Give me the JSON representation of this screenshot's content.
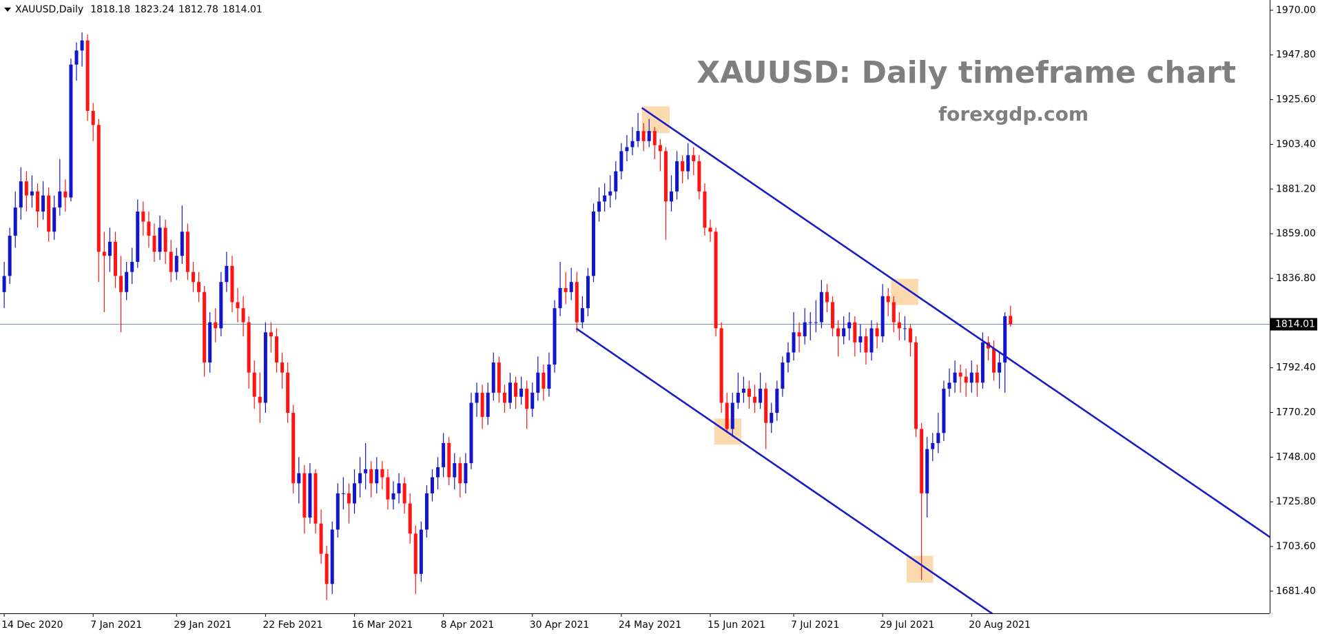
{
  "chart_data": {
    "type": "candlestick",
    "symbol": "XAUUSD,Daily",
    "title": "XAUUSD: Daily timeframe chart",
    "subtitle": "forexgdp.com",
    "up_color": "#1414c8",
    "down_color": "#ff1414",
    "trendline_color": "#1a1acd",
    "highlight_color": "#f9d3a0",
    "price_line_color": "#7a8fb8",
    "grid": false,
    "ylim": [
      1670.4,
      1975.1
    ],
    "yticks": [
      {
        "value": 1970.0,
        "label": "1970.00"
      },
      {
        "value": 1947.8,
        "label": "1947.80"
      },
      {
        "value": 1925.6,
        "label": "1925.60"
      },
      {
        "value": 1903.4,
        "label": "1903.40"
      },
      {
        "value": 1881.2,
        "label": "1881.20"
      },
      {
        "value": 1859.0,
        "label": "1859.00"
      },
      {
        "value": 1836.8,
        "label": "1836.80"
      },
      {
        "value": 1792.4,
        "label": "1792.40"
      },
      {
        "value": 1770.2,
        "label": "1770.20"
      },
      {
        "value": 1748.0,
        "label": "1748.00"
      },
      {
        "value": 1725.8,
        "label": "1725.80"
      },
      {
        "value": 1703.6,
        "label": "1703.60"
      },
      {
        "value": 1681.4,
        "label": "1681.40"
      }
    ],
    "categories": [
      "14 Dec 2020",
      null,
      null,
      null,
      null,
      null,
      null,
      null,
      null,
      null,
      null,
      null,
      null,
      null,
      null,
      null,
      "7 Jan 2021",
      null,
      null,
      null,
      null,
      null,
      null,
      null,
      null,
      null,
      null,
      null,
      null,
      null,
      null,
      "29 Jan 2021",
      null,
      null,
      null,
      null,
      null,
      null,
      null,
      null,
      null,
      null,
      null,
      null,
      null,
      null,
      null,
      "22 Feb 2021",
      null,
      null,
      null,
      null,
      null,
      null,
      null,
      null,
      null,
      null,
      null,
      null,
      null,
      null,
      null,
      "16 Mar 2021",
      null,
      null,
      null,
      null,
      null,
      null,
      null,
      null,
      null,
      null,
      null,
      null,
      null,
      null,
      null,
      "8 Apr 2021",
      null,
      null,
      null,
      null,
      null,
      null,
      null,
      null,
      null,
      null,
      null,
      null,
      null,
      null,
      null,
      "30 Apr 2021",
      null,
      null,
      null,
      null,
      null,
      null,
      null,
      null,
      null,
      null,
      null,
      null,
      null,
      null,
      null,
      "24 May 2021",
      null,
      null,
      null,
      null,
      null,
      null,
      null,
      null,
      null,
      null,
      null,
      null,
      null,
      null,
      null,
      "15 Jun 2021",
      null,
      null,
      null,
      null,
      null,
      null,
      null,
      null,
      null,
      null,
      null,
      null,
      null,
      null,
      "7 Jul 2021",
      null,
      null,
      null,
      null,
      null,
      null,
      null,
      null,
      null,
      null,
      null,
      null,
      null,
      null,
      null,
      "29 Jul 2021",
      null,
      null,
      null,
      null,
      null,
      null,
      null,
      null,
      null,
      null,
      null,
      null,
      null,
      null,
      null,
      "20 Aug 2021",
      null,
      null,
      null,
      null,
      null,
      null,
      null
    ],
    "ohlc": [
      [
        1830,
        1845,
        1822,
        1838
      ],
      [
        1838,
        1862,
        1834,
        1858
      ],
      [
        1858,
        1880,
        1852,
        1872
      ],
      [
        1872,
        1892,
        1866,
        1885
      ],
      [
        1885,
        1890,
        1870,
        1878
      ],
      [
        1878,
        1888,
        1872,
        1880
      ],
      [
        1880,
        1884,
        1862,
        1870
      ],
      [
        1870,
        1885,
        1866,
        1878
      ],
      [
        1878,
        1882,
        1855,
        1860
      ],
      [
        1860,
        1878,
        1856,
        1872
      ],
      [
        1872,
        1896,
        1868,
        1880
      ],
      [
        1880,
        1886,
        1870,
        1877
      ],
      [
        1877,
        1946,
        1875,
        1943
      ],
      [
        1943,
        1954,
        1935,
        1950
      ],
      [
        1950,
        1959,
        1942,
        1955
      ],
      [
        1955,
        1958,
        1915,
        1920
      ],
      [
        1920,
        1924,
        1905,
        1913
      ],
      [
        1913,
        1916,
        1835,
        1850
      ],
      [
        1850,
        1860,
        1820,
        1848
      ],
      [
        1848,
        1862,
        1840,
        1855
      ],
      [
        1855,
        1860,
        1832,
        1838
      ],
      [
        1838,
        1848,
        1810,
        1830
      ],
      [
        1830,
        1845,
        1826,
        1840
      ],
      [
        1840,
        1852,
        1834,
        1845
      ],
      [
        1845,
        1876,
        1842,
        1870
      ],
      [
        1870,
        1875,
        1858,
        1865
      ],
      [
        1865,
        1870,
        1852,
        1858
      ],
      [
        1858,
        1864,
        1845,
        1850
      ],
      [
        1850,
        1868,
        1846,
        1862
      ],
      [
        1862,
        1866,
        1844,
        1850
      ],
      [
        1850,
        1856,
        1835,
        1840
      ],
      [
        1840,
        1852,
        1836,
        1848
      ],
      [
        1848,
        1873,
        1844,
        1860
      ],
      [
        1860,
        1864,
        1836,
        1840
      ],
      [
        1840,
        1845,
        1830,
        1835
      ],
      [
        1835,
        1840,
        1825,
        1830
      ],
      [
        1830,
        1833,
        1788,
        1795
      ],
      [
        1795,
        1820,
        1790,
        1815
      ],
      [
        1815,
        1822,
        1805,
        1812
      ],
      [
        1812,
        1840,
        1808,
        1835
      ],
      [
        1835,
        1850,
        1830,
        1843
      ],
      [
        1843,
        1848,
        1820,
        1825
      ],
      [
        1825,
        1832,
        1815,
        1822
      ],
      [
        1822,
        1828,
        1808,
        1815
      ],
      [
        1815,
        1818,
        1782,
        1790
      ],
      [
        1790,
        1796,
        1772,
        1778
      ],
      [
        1778,
        1790,
        1765,
        1775
      ],
      [
        1775,
        1815,
        1770,
        1810
      ],
      [
        1810,
        1815,
        1800,
        1808
      ],
      [
        1808,
        1812,
        1790,
        1795
      ],
      [
        1795,
        1800,
        1782,
        1790
      ],
      [
        1790,
        1795,
        1765,
        1770
      ],
      [
        1770,
        1774,
        1730,
        1735
      ],
      [
        1735,
        1748,
        1725,
        1740
      ],
      [
        1740,
        1744,
        1710,
        1718
      ],
      [
        1718,
        1745,
        1715,
        1740
      ],
      [
        1740,
        1742,
        1710,
        1715
      ],
      [
        1715,
        1722,
        1695,
        1700
      ],
      [
        1700,
        1704,
        1677,
        1685
      ],
      [
        1685,
        1716,
        1680,
        1712
      ],
      [
        1712,
        1735,
        1708,
        1730
      ],
      [
        1730,
        1738,
        1722,
        1730
      ],
      [
        1730,
        1735,
        1715,
        1725
      ],
      [
        1725,
        1742,
        1720,
        1735
      ],
      [
        1735,
        1748,
        1728,
        1740
      ],
      [
        1740,
        1755,
        1732,
        1742
      ],
      [
        1742,
        1746,
        1728,
        1735
      ],
      [
        1735,
        1748,
        1730,
        1742
      ],
      [
        1742,
        1746,
        1732,
        1738
      ],
      [
        1738,
        1742,
        1722,
        1727
      ],
      [
        1727,
        1736,
        1722,
        1730
      ],
      [
        1730,
        1740,
        1725,
        1735
      ],
      [
        1735,
        1738,
        1720,
        1725
      ],
      [
        1725,
        1730,
        1705,
        1710
      ],
      [
        1710,
        1714,
        1680,
        1690
      ],
      [
        1690,
        1716,
        1686,
        1712
      ],
      [
        1712,
        1734,
        1708,
        1730
      ],
      [
        1730,
        1742,
        1726,
        1738
      ],
      [
        1738,
        1748,
        1732,
        1743
      ],
      [
        1743,
        1760,
        1738,
        1755
      ],
      [
        1755,
        1758,
        1734,
        1738
      ],
      [
        1738,
        1750,
        1732,
        1745
      ],
      [
        1745,
        1748,
        1728,
        1735
      ],
      [
        1735,
        1750,
        1730,
        1745
      ],
      [
        1745,
        1780,
        1742,
        1775
      ],
      [
        1775,
        1785,
        1768,
        1780
      ],
      [
        1780,
        1784,
        1762,
        1768
      ],
      [
        1768,
        1785,
        1764,
        1780
      ],
      [
        1780,
        1800,
        1776,
        1795
      ],
      [
        1795,
        1798,
        1775,
        1780
      ],
      [
        1780,
        1784,
        1770,
        1775
      ],
      [
        1775,
        1790,
        1772,
        1785
      ],
      [
        1785,
        1788,
        1772,
        1778
      ],
      [
        1778,
        1788,
        1774,
        1782
      ],
      [
        1782,
        1786,
        1762,
        1772
      ],
      [
        1772,
        1785,
        1768,
        1780
      ],
      [
        1780,
        1798,
        1776,
        1790
      ],
      [
        1790,
        1794,
        1776,
        1782
      ],
      [
        1782,
        1800,
        1778,
        1794
      ],
      [
        1794,
        1826,
        1790,
        1822
      ],
      [
        1822,
        1845,
        1818,
        1832
      ],
      [
        1832,
        1840,
        1824,
        1830
      ],
      [
        1830,
        1842,
        1826,
        1835
      ],
      [
        1835,
        1840,
        1810,
        1815
      ],
      [
        1815,
        1828,
        1812,
        1822
      ],
      [
        1822,
        1842,
        1818,
        1838
      ],
      [
        1838,
        1874,
        1835,
        1870
      ],
      [
        1870,
        1882,
        1865,
        1875
      ],
      [
        1875,
        1884,
        1870,
        1878
      ],
      [
        1878,
        1888,
        1872,
        1880
      ],
      [
        1880,
        1895,
        1876,
        1890
      ],
      [
        1890,
        1904,
        1886,
        1900
      ],
      [
        1900,
        1908,
        1895,
        1902
      ],
      [
        1902,
        1912,
        1898,
        1905
      ],
      [
        1905,
        1919,
        1902,
        1910
      ],
      [
        1910,
        1914,
        1900,
        1905
      ],
      [
        1905,
        1916,
        1902,
        1910
      ],
      [
        1910,
        1912,
        1896,
        1903
      ],
      [
        1903,
        1906,
        1890,
        1900
      ],
      [
        1900,
        1902,
        1856,
        1875
      ],
      [
        1875,
        1888,
        1870,
        1880
      ],
      [
        1880,
        1900,
        1876,
        1895
      ],
      [
        1895,
        1898,
        1884,
        1890
      ],
      [
        1890,
        1904,
        1886,
        1898
      ],
      [
        1898,
        1902,
        1888,
        1895
      ],
      [
        1895,
        1898,
        1876,
        1880
      ],
      [
        1880,
        1884,
        1858,
        1862
      ],
      [
        1862,
        1866,
        1855,
        1860
      ],
      [
        1860,
        1862,
        1808,
        1812
      ],
      [
        1812,
        1815,
        1770,
        1775
      ],
      [
        1775,
        1780,
        1760,
        1762
      ],
      [
        1762,
        1780,
        1758,
        1775
      ],
      [
        1775,
        1790,
        1772,
        1780
      ],
      [
        1780,
        1788,
        1775,
        1782
      ],
      [
        1782,
        1786,
        1772,
        1778
      ],
      [
        1778,
        1784,
        1770,
        1775
      ],
      [
        1775,
        1790,
        1772,
        1782
      ],
      [
        1782,
        1785,
        1752,
        1765
      ],
      [
        1765,
        1775,
        1760,
        1770
      ],
      [
        1770,
        1786,
        1766,
        1782
      ],
      [
        1782,
        1798,
        1778,
        1795
      ],
      [
        1795,
        1805,
        1790,
        1800
      ],
      [
        1800,
        1820,
        1796,
        1810
      ],
      [
        1810,
        1815,
        1800,
        1808
      ],
      [
        1808,
        1822,
        1804,
        1815
      ],
      [
        1815,
        1820,
        1806,
        1815
      ],
      [
        1815,
        1826,
        1810,
        1815
      ],
      [
        1815,
        1836,
        1812,
        1830
      ],
      [
        1830,
        1834,
        1820,
        1825
      ],
      [
        1825,
        1828,
        1808,
        1812
      ],
      [
        1812,
        1816,
        1798,
        1808
      ],
      [
        1808,
        1818,
        1804,
        1812
      ],
      [
        1812,
        1820,
        1806,
        1815
      ],
      [
        1815,
        1818,
        1798,
        1805
      ],
      [
        1805,
        1814,
        1800,
        1808
      ],
      [
        1808,
        1812,
        1794,
        1800
      ],
      [
        1800,
        1816,
        1796,
        1812
      ],
      [
        1812,
        1815,
        1802,
        1808
      ],
      [
        1808,
        1834,
        1805,
        1828
      ],
      [
        1828,
        1832,
        1818,
        1825
      ],
      [
        1825,
        1828,
        1810,
        1815
      ],
      [
        1815,
        1820,
        1806,
        1812
      ],
      [
        1812,
        1818,
        1806,
        1812
      ],
      [
        1812,
        1814,
        1798,
        1805
      ],
      [
        1805,
        1808,
        1758,
        1762
      ],
      [
        1762,
        1765,
        1687,
        1730
      ],
      [
        1730,
        1758,
        1718,
        1752
      ],
      [
        1752,
        1760,
        1746,
        1755
      ],
      [
        1755,
        1770,
        1750,
        1760
      ],
      [
        1760,
        1786,
        1756,
        1782
      ],
      [
        1782,
        1792,
        1778,
        1785
      ],
      [
        1785,
        1796,
        1780,
        1790
      ],
      [
        1790,
        1794,
        1780,
        1788
      ],
      [
        1788,
        1792,
        1778,
        1785
      ],
      [
        1785,
        1796,
        1780,
        1790
      ],
      [
        1790,
        1794,
        1778,
        1785
      ],
      [
        1785,
        1810,
        1782,
        1805
      ],
      [
        1805,
        1808,
        1796,
        1802
      ],
      [
        1802,
        1806,
        1786,
        1790
      ],
      [
        1790,
        1800,
        1782,
        1795
      ],
      [
        1795,
        1820,
        1780,
        1818
      ],
      [
        1818.18,
        1823.24,
        1812.78,
        1814.01
      ]
    ],
    "trendlines": [
      {
        "x": [
          114.7,
          227.7
        ],
        "y": [
          1921.5,
          1708.2
        ]
      },
      {
        "x": [
          102.9,
          178.0
        ],
        "y": [
          1811.9,
          1669.7
        ]
      }
    ],
    "highlights": [
      {
        "x": [
          114.7,
          119.7
        ],
        "y": [
          1922.3,
          1908.9
        ]
      },
      {
        "x": [
          127.7,
          132.6
        ],
        "y": [
          1767.2,
          1754.2
        ]
      },
      {
        "x": [
          159.5,
          164.4
        ],
        "y": [
          1836.6,
          1823.6
        ]
      },
      {
        "x": [
          162.3,
          167.1
        ],
        "y": [
          1699.0,
          1685.6
        ]
      }
    ]
  }
}
